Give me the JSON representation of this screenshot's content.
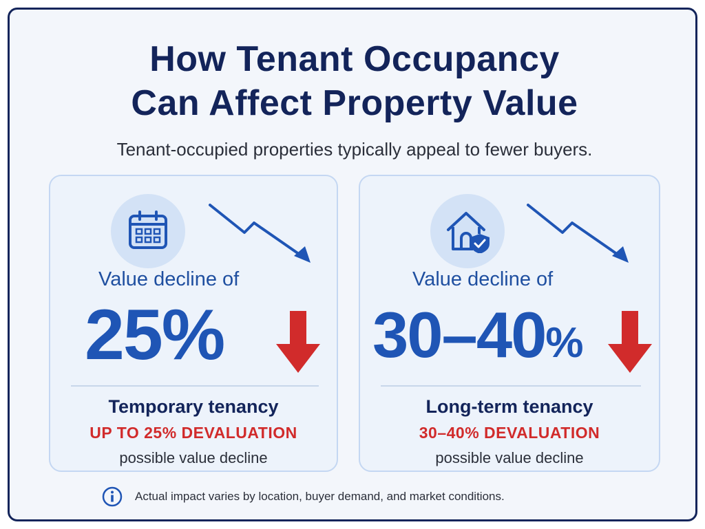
{
  "title": {
    "line1": "How Tenant Occupancy",
    "line2": "Can Affect Property Value"
  },
  "subtitle": "Tenant-occupied properties typically appeal to fewer buyers.",
  "cards": [
    {
      "icon": "calendar-icon",
      "decline_label": "Value decline of",
      "decline_value": "25",
      "decline_unit": "%",
      "tenancy_type": "Temporary tenancy",
      "devaluation": "UP TO 25% DEVALUATION",
      "note": "possible value decline"
    },
    {
      "icon": "house-shield-icon",
      "decline_label": "Value decline of",
      "decline_value": "30–40",
      "decline_unit": "%",
      "tenancy_type": "Long-term tenancy",
      "devaluation": "30–40% DEVALUATION",
      "note": "possible value decline"
    }
  ],
  "footnote": {
    "icon": "info-icon",
    "text": "Actual impact varies by location, buyer demand, and market conditions."
  },
  "colors": {
    "navy": "#13245a",
    "blue": "#1f55b5",
    "red": "#d12b2b",
    "card_bg": "#edf3fb",
    "icon_bg": "#d3e2f6"
  }
}
